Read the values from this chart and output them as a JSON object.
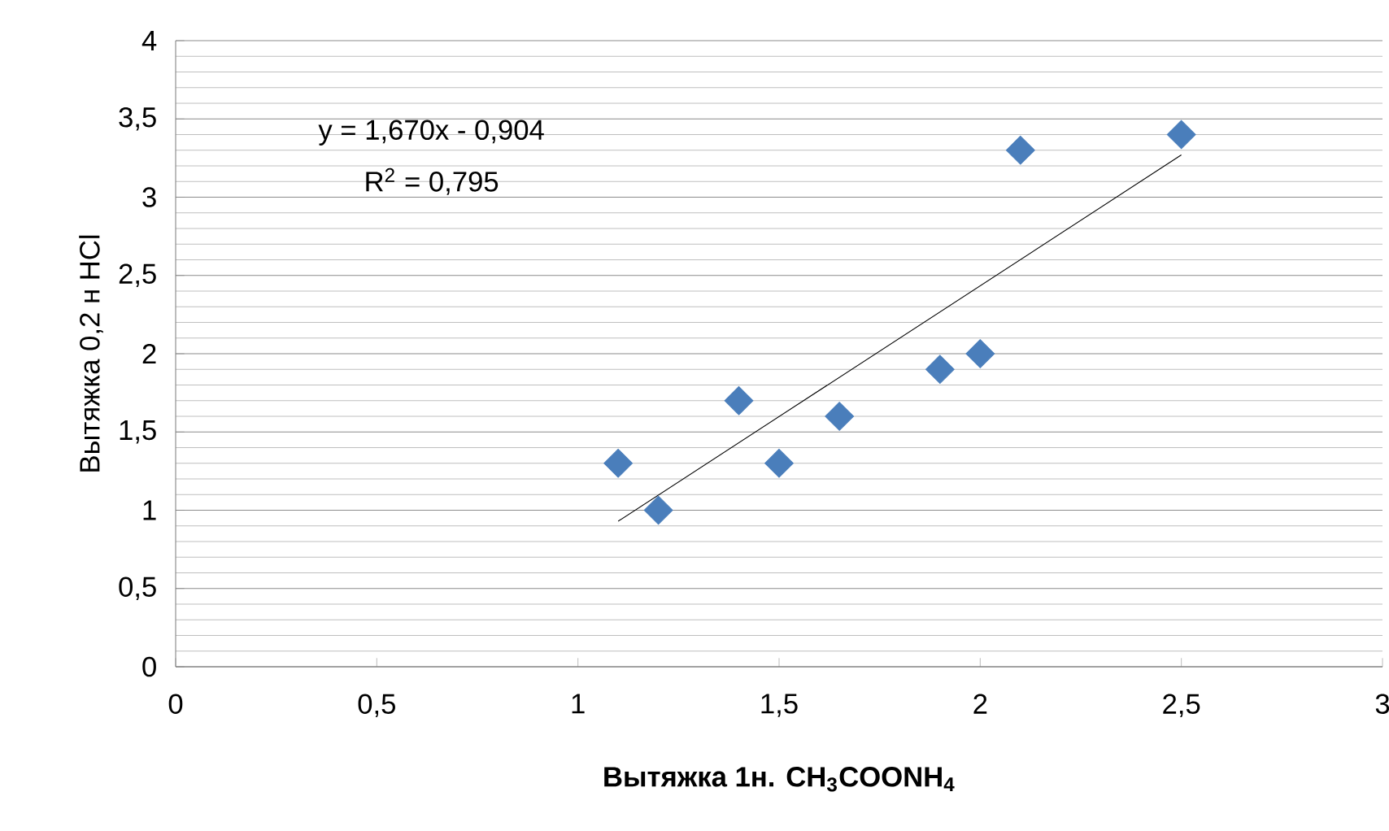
{
  "chart_data": {
    "type": "scatter",
    "xlabel": "Вытяжка 1н.  CH$_{3}$COONH$_{4}$",
    "ylabel": "Вытяжка 0,2 н HCl",
    "annotations": [
      "y = 1,670x - 0,904",
      "R$^{2}$ = 0,795"
    ],
    "series": [
      {
        "marker": "diamond",
        "color": "#4a7ebb",
        "x": [
          1.1,
          1.2,
          1.4,
          1.5,
          1.65,
          1.9,
          2.0,
          2.1,
          2.5
        ],
        "values": [
          1.3,
          1.0,
          1.7,
          1.3,
          1.6,
          1.9,
          2.0,
          3.3,
          3.4
        ]
      },
      {
        "type": "line",
        "marker": "none",
        "color": "#000000",
        "x": [
          1.1,
          2.5
        ],
        "values": [
          0.93,
          3.27
        ]
      }
    ],
    "grid": "y",
    "xlim": [
      0,
      3
    ],
    "ylim": [
      0,
      4
    ],
    "xticks": [
      0,
      {
        "value": 0.5,
        "label": "0,5"
      },
      1,
      {
        "value": 1.5,
        "label": "1,5"
      },
      2,
      {
        "value": 2.5,
        "label": "2,5"
      },
      3
    ],
    "yticks": [
      0,
      {
        "value": 0.5,
        "label": "0,5"
      },
      1,
      {
        "value": 1.5,
        "label": "1,5"
      },
      2,
      {
        "value": 2.5,
        "label": "2,5"
      },
      3,
      {
        "value": 3.5,
        "label": "3,5"
      },
      4
    ]
  }
}
